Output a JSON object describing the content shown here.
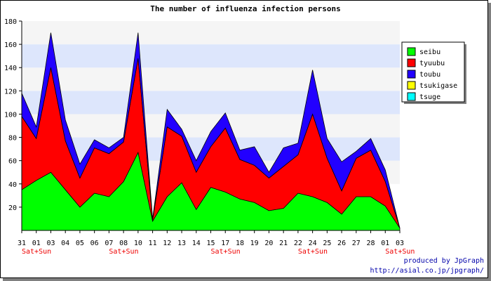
{
  "chart_data": {
    "type": "area",
    "stacked": true,
    "title": "The number of influenza infection persons",
    "xlabel": "",
    "ylabel": "",
    "ylim": [
      0,
      180
    ],
    "yticks": [
      20,
      40,
      60,
      80,
      100,
      120,
      140,
      160,
      180
    ],
    "grid": "horizontal bands",
    "legend_position": "right",
    "categories": [
      "31",
      "01",
      "03",
      "04",
      "05",
      "06",
      "07",
      "08",
      "10",
      "11",
      "12",
      "13",
      "14",
      "15",
      "17",
      "18",
      "19",
      "20",
      "21",
      "22",
      "24",
      "25",
      "26",
      "27",
      "28",
      "01",
      "03"
    ],
    "weekend_labels": [
      {
        "category_index": 0,
        "label": "Sat+Sun"
      },
      {
        "category_index": 6,
        "label": "Sat+Sun"
      },
      {
        "category_index": 13,
        "label": "Sat+Sun"
      },
      {
        "category_index": 19,
        "label": "Sat+Sun"
      },
      {
        "category_index": 25,
        "label": "Sat+Sun"
      }
    ],
    "series": [
      {
        "name": "seibu",
        "color": "#00ff00",
        "values": [
          35,
          43,
          50,
          35,
          20,
          32,
          29,
          42,
          67,
          8,
          29,
          41,
          18,
          37,
          33,
          27,
          24,
          17,
          19,
          32,
          29,
          24,
          14,
          29,
          29,
          21,
          2
        ]
      },
      {
        "name": "tyuubu",
        "color": "#ff0000",
        "values": [
          63,
          36,
          90,
          42,
          25,
          39,
          37,
          34,
          81,
          1,
          60,
          40,
          32,
          35,
          55,
          34,
          32,
          28,
          36,
          33,
          71,
          38,
          20,
          33,
          40,
          21,
          0
        ]
      },
      {
        "name": "toubu",
        "color": "#2200ff",
        "values": [
          20,
          10,
          30,
          18,
          12,
          7,
          5,
          4,
          22,
          1,
          15,
          6,
          10,
          13,
          13,
          8,
          16,
          5,
          16,
          10,
          38,
          17,
          25,
          6,
          10,
          10,
          0
        ]
      },
      {
        "name": "tsukigase",
        "color": "#ffff00",
        "values": [
          0,
          0,
          0,
          0,
          0,
          0,
          0,
          0,
          0,
          0,
          0,
          0,
          0,
          0,
          0,
          0,
          0,
          0,
          0,
          0,
          0,
          0,
          0,
          0,
          0,
          0,
          0
        ]
      },
      {
        "name": "tsuge",
        "color": "#00ffff",
        "values": [
          0,
          0,
          0,
          0,
          0,
          0,
          0,
          0,
          0,
          0,
          0,
          0,
          0,
          0,
          0,
          0,
          0,
          0,
          0,
          0,
          0,
          0,
          0,
          0,
          0,
          0,
          0
        ]
      }
    ]
  },
  "credits": {
    "line1": "produced by JpGraph",
    "line2": "http://asial.co.jp/jpgraph/"
  }
}
